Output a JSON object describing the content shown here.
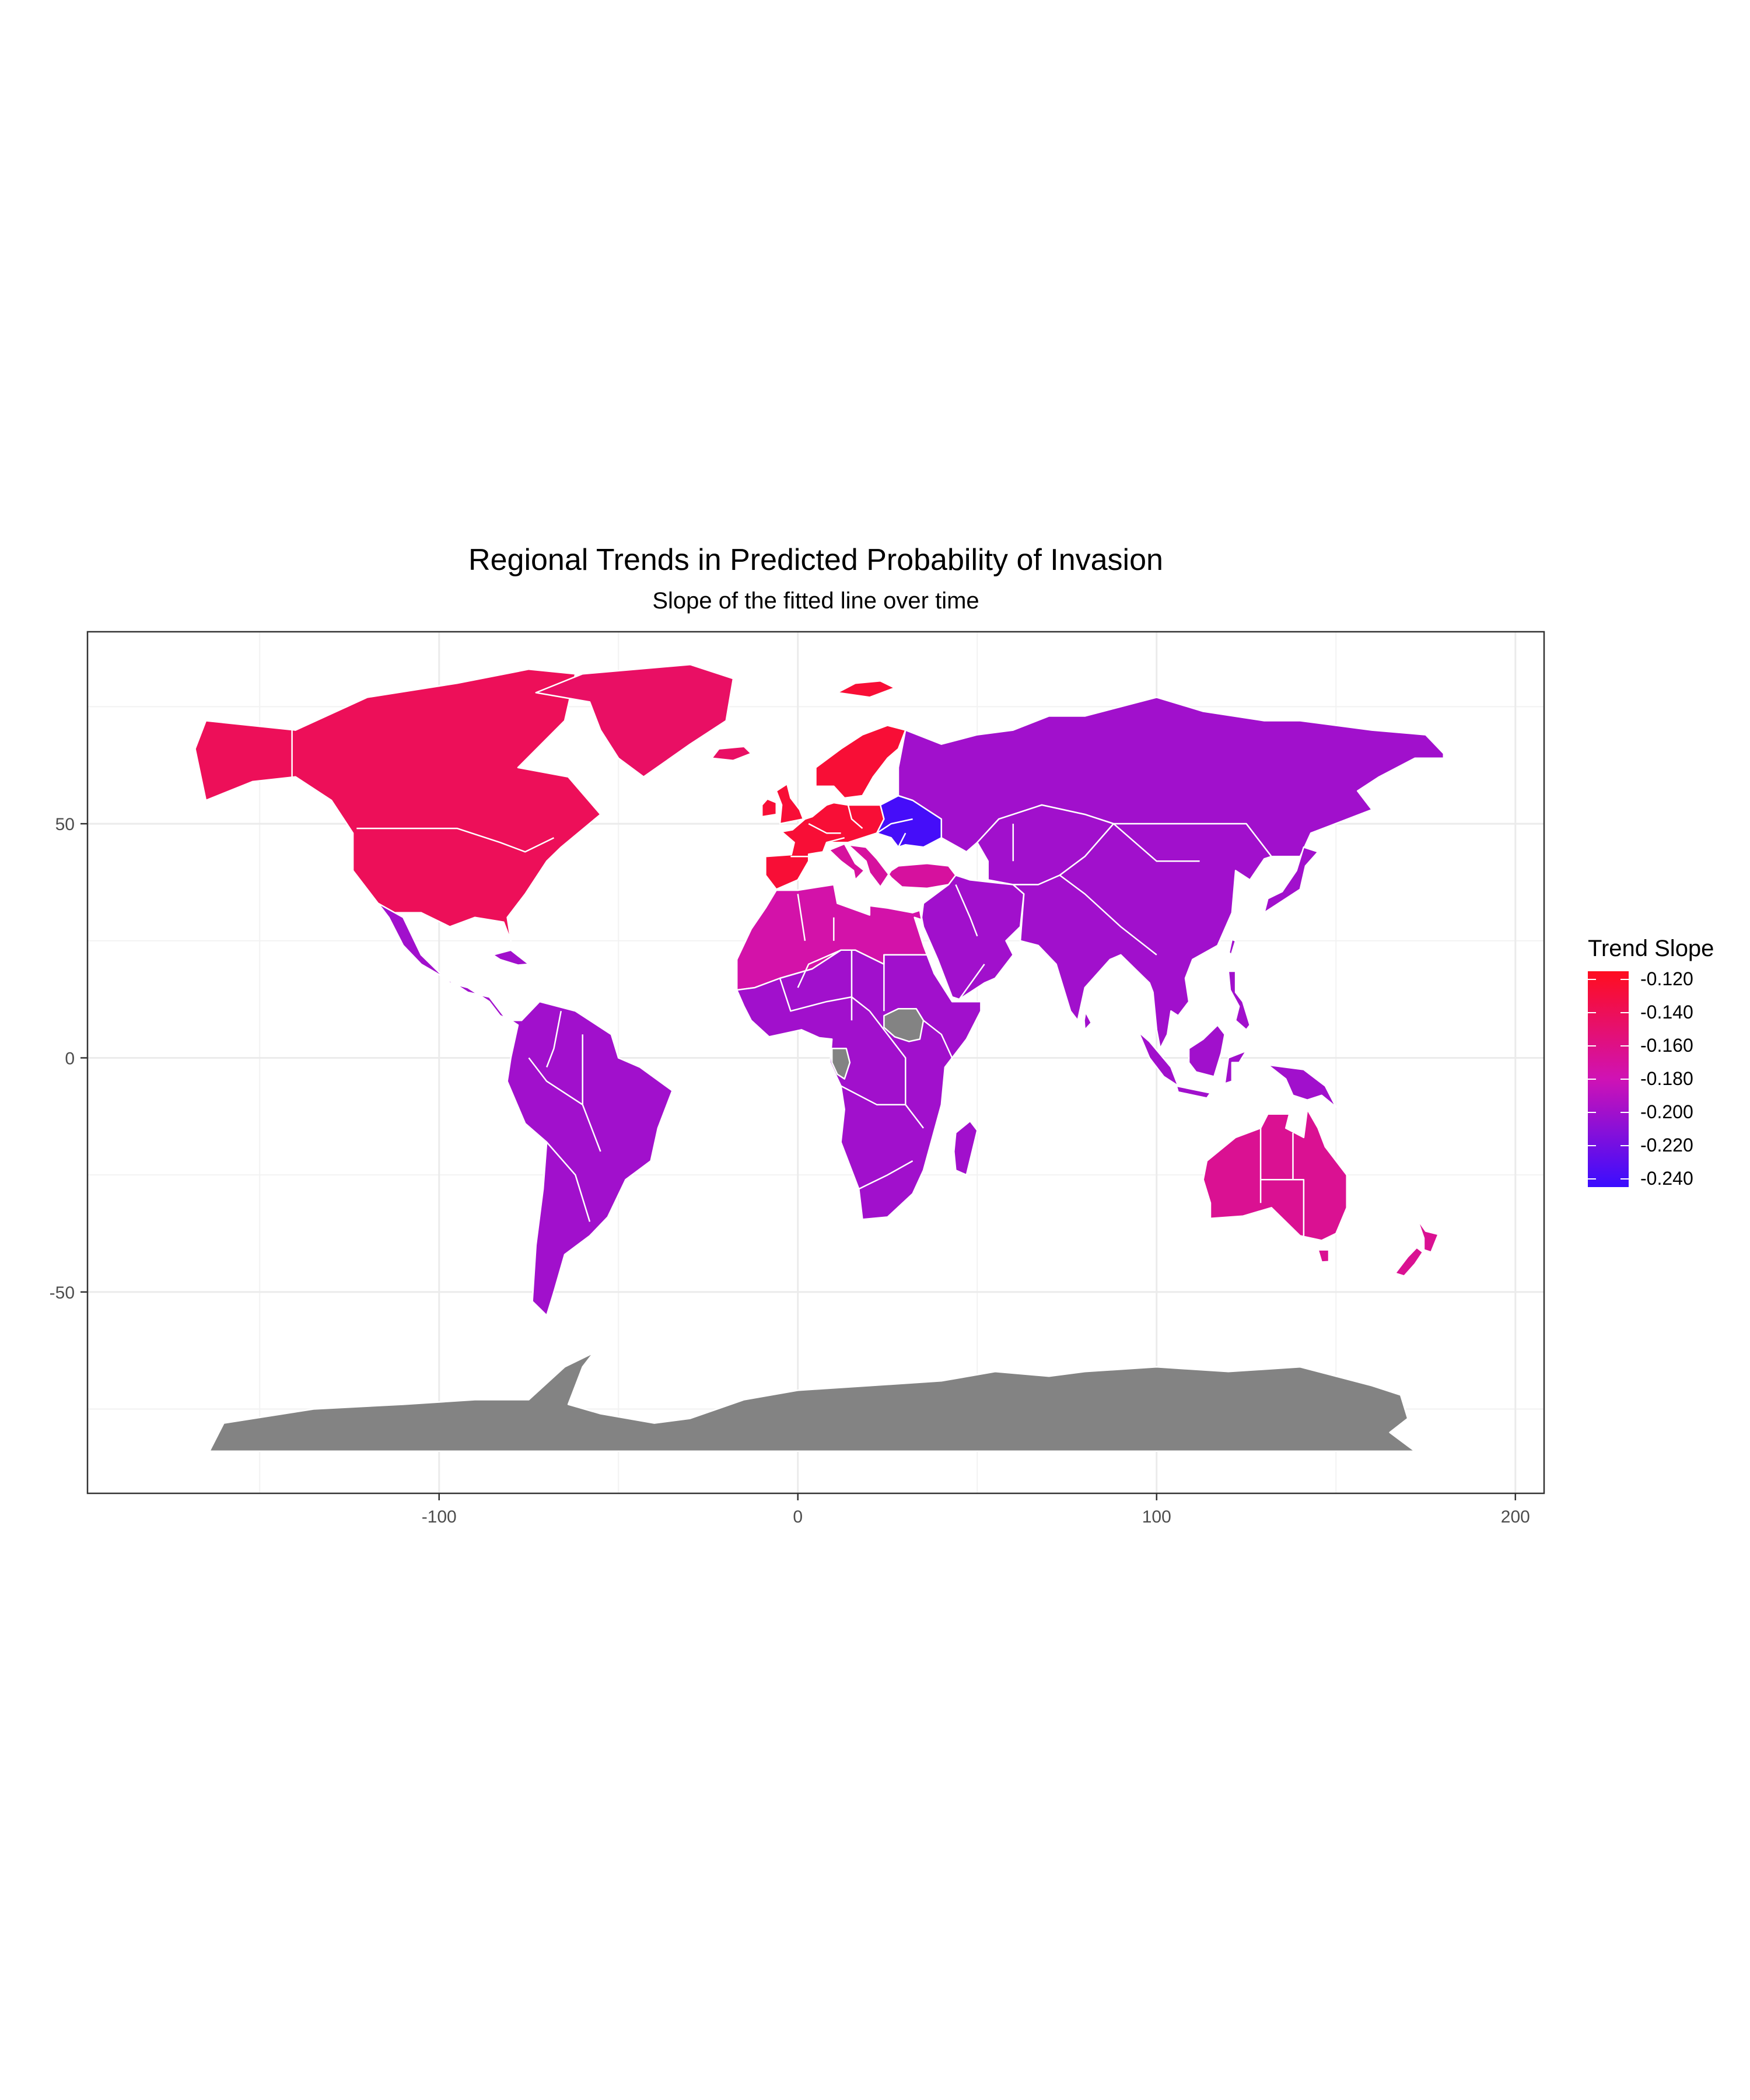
{
  "chart_data": {
    "type": "choropleth-map",
    "title": "Regional Trends in Predicted Probability of Invasion",
    "subtitle": "Slope of the fitted line over time",
    "x_ticks": [
      "-100",
      "0",
      "100",
      "200"
    ],
    "y_ticks": [
      "50",
      "0",
      "-50"
    ],
    "xlim": [
      -198,
      208
    ],
    "ylim": [
      -93,
      91
    ],
    "grid": true,
    "legend": {
      "title": "Trend Slope",
      "placement": "right",
      "labels": [
        "-0.120",
        "-0.140",
        "-0.160",
        "-0.180",
        "-0.200",
        "-0.220",
        "-0.240"
      ],
      "range": [
        -0.245,
        -0.115
      ],
      "gradient_high": "#ff0d1f",
      "gradient_mid": "#cf12b5",
      "gradient_low": "#3a0dff"
    },
    "no_data_color": "#838383",
    "regions": [
      {
        "region": "North America",
        "slope": -0.14
      },
      {
        "region": "Greenland",
        "slope": -0.145
      },
      {
        "region": "Western & Northern Europe",
        "slope": -0.125
      },
      {
        "region": "Eastern Europe",
        "slope": -0.24
      },
      {
        "region": "Southern Europe & Turkey",
        "slope": -0.17
      },
      {
        "region": "North Africa",
        "slope": -0.175
      },
      {
        "region": "Sub-Saharan Africa",
        "slope": -0.2
      },
      {
        "region": "Latin America",
        "slope": -0.2
      },
      {
        "region": "Russia & Central Asia",
        "slope": -0.2
      },
      {
        "region": "East & South Asia",
        "slope": -0.2
      },
      {
        "region": "Middle East",
        "slope": -0.2
      },
      {
        "region": "Oceania",
        "slope": -0.165
      },
      {
        "region": "Antarctica",
        "slope": null
      },
      {
        "region": "Central Africa (no data)",
        "slope": null
      }
    ]
  }
}
